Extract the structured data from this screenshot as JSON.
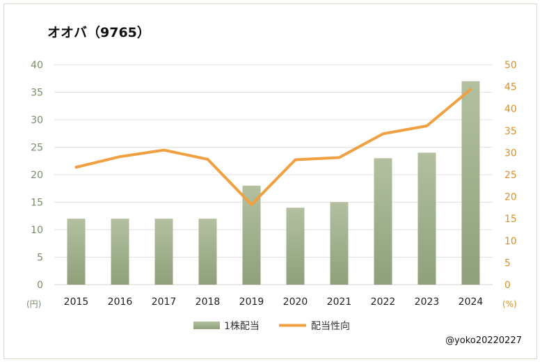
{
  "chart_data": {
    "type": "bar+line",
    "title": "オオバ（9765）",
    "categories": [
      "2015",
      "2016",
      "2017",
      "2018",
      "2019",
      "2020",
      "2021",
      "2022",
      "2023",
      "2024"
    ],
    "series": [
      {
        "name": "1株配当",
        "type": "bar",
        "axis": "left",
        "values": [
          12,
          12,
          12,
          12,
          18,
          14,
          15,
          23,
          24,
          37
        ]
      },
      {
        "name": "配当性向",
        "type": "line",
        "axis": "right",
        "values": [
          26.7,
          29.1,
          30.6,
          28.5,
          18.2,
          28.4,
          28.9,
          34.3,
          36.1,
          44.4
        ]
      }
    ],
    "left_axis": {
      "ylim": [
        0,
        40
      ],
      "ticks": [
        0,
        5,
        10,
        15,
        20,
        25,
        30,
        35,
        40
      ],
      "unit": "(円)"
    },
    "right_axis": {
      "ylim": [
        0,
        50
      ],
      "ticks": [
        0,
        5,
        10,
        15,
        20,
        25,
        30,
        35,
        40,
        45,
        50
      ],
      "unit": "(%)"
    },
    "legend_position": "bottom",
    "grid": true,
    "colors": {
      "bar_top": "#b2c0a0",
      "bar_bottom": "#8fa07a",
      "line": "#f0a040",
      "left_text": "#7a8b66",
      "right_text": "#d9912b"
    }
  },
  "watermark": "@yoko20220227"
}
